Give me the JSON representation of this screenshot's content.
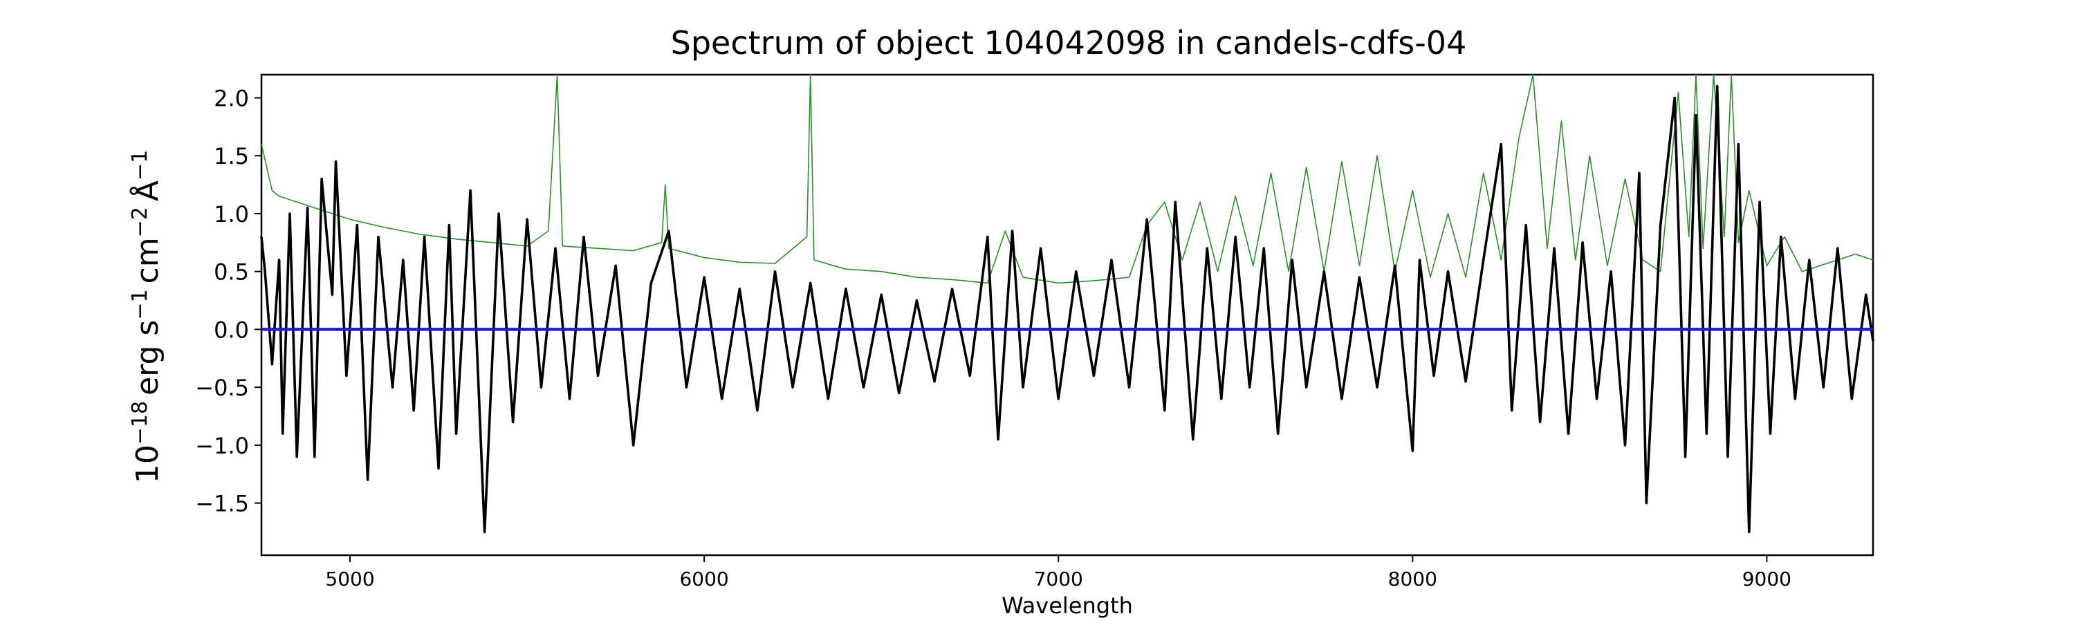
{
  "chart_data": {
    "type": "line",
    "title": "Spectrum of object 104042098 in candels-cdfs-04",
    "xlabel": "Wavelength",
    "ylabel": {
      "prefix": "10",
      "exp1": "−18",
      "unit1": "erg s",
      "exp2": "−1",
      "unit2": "cm",
      "exp3": "−2",
      "unit3": "Å",
      "exp4": "−1"
    },
    "xlim": [
      4750,
      9300
    ],
    "ylim": [
      -1.95,
      2.2
    ],
    "xticks": [
      5000,
      6000,
      7000,
      8000,
      9000
    ],
    "xtick_labels": [
      "5000",
      "6000",
      "7000",
      "8000",
      "9000"
    ],
    "yticks": [
      2.0,
      1.5,
      1.0,
      0.5,
      0.0,
      -0.5,
      -1.0,
      -1.5
    ],
    "ytick_labels": [
      "2.0",
      "1.5",
      "1.0",
      "0.5",
      "0.0",
      "−0.5",
      "−1.0",
      "−1.5"
    ],
    "grid": false,
    "series": [
      {
        "role": "noise",
        "color": "#2e8b2e",
        "x": [
          4750,
          4780,
          4800,
          4850,
          4900,
          5000,
          5100,
          5200,
          5300,
          5400,
          5500,
          5560,
          5585,
          5600,
          5700,
          5800,
          5880,
          5890,
          5900,
          6000,
          6100,
          6200,
          6290,
          6300,
          6310,
          6400,
          6500,
          6600,
          6700,
          6800,
          6850,
          6900,
          7000,
          7100,
          7200,
          7250,
          7300,
          7350,
          7400,
          7450,
          7500,
          7550,
          7600,
          7650,
          7700,
          7750,
          7800,
          7850,
          7900,
          7950,
          8000,
          8050,
          8100,
          8150,
          8200,
          8250,
          8300,
          8340,
          8380,
          8420,
          8460,
          8500,
          8550,
          8600,
          8650,
          8700,
          8750,
          8780,
          8800,
          8820,
          8850,
          8880,
          8900,
          8920,
          8950,
          9000,
          9050,
          9100,
          9150,
          9200,
          9250,
          9300
        ],
        "y": [
          1.6,
          1.2,
          1.15,
          1.1,
          1.05,
          0.95,
          0.88,
          0.82,
          0.78,
          0.75,
          0.72,
          0.85,
          2.2,
          0.72,
          0.7,
          0.68,
          0.75,
          1.25,
          0.7,
          0.62,
          0.58,
          0.57,
          0.8,
          2.2,
          0.6,
          0.52,
          0.5,
          0.45,
          0.43,
          0.4,
          0.85,
          0.45,
          0.4,
          0.42,
          0.45,
          0.9,
          1.1,
          0.6,
          1.1,
          0.5,
          1.15,
          0.55,
          1.35,
          0.5,
          1.4,
          0.5,
          1.45,
          0.55,
          1.5,
          0.5,
          1.2,
          0.45,
          1.0,
          0.45,
          1.35,
          0.6,
          1.65,
          2.2,
          0.7,
          1.8,
          0.6,
          1.5,
          0.55,
          1.3,
          0.6,
          0.5,
          2.05,
          0.8,
          2.2,
          0.7,
          2.2,
          0.8,
          2.2,
          0.75,
          1.2,
          0.55,
          0.8,
          0.5,
          0.55,
          0.6,
          0.65,
          0.6
        ]
      },
      {
        "role": "flux",
        "color": "#000000",
        "x": [
          4750,
          4760,
          4780,
          4800,
          4810,
          4830,
          4850,
          4880,
          4900,
          4920,
          4950,
          4960,
          4990,
          5020,
          5050,
          5080,
          5120,
          5150,
          5180,
          5210,
          5250,
          5280,
          5300,
          5340,
          5380,
          5420,
          5460,
          5500,
          5540,
          5580,
          5620,
          5660,
          5700,
          5750,
          5800,
          5850,
          5900,
          5950,
          6000,
          6050,
          6100,
          6150,
          6200,
          6250,
          6300,
          6350,
          6400,
          6450,
          6500,
          6550,
          6600,
          6650,
          6700,
          6750,
          6800,
          6830,
          6870,
          6900,
          6950,
          7000,
          7050,
          7100,
          7150,
          7200,
          7250,
          7300,
          7330,
          7380,
          7420,
          7460,
          7500,
          7540,
          7580,
          7620,
          7660,
          7700,
          7750,
          7800,
          7850,
          7900,
          7950,
          8000,
          8020,
          8060,
          8100,
          8150,
          8200,
          8250,
          8280,
          8320,
          8360,
          8400,
          8440,
          8480,
          8520,
          8560,
          8600,
          8640,
          8660,
          8700,
          8740,
          8770,
          8800,
          8830,
          8860,
          8890,
          8920,
          8950,
          8980,
          9010,
          9040,
          9080,
          9120,
          9160,
          9200,
          9240,
          9280,
          9300
        ],
        "y": [
          0.8,
          0.5,
          -0.3,
          0.6,
          -0.9,
          1.0,
          -1.1,
          1.05,
          -1.1,
          1.3,
          0.3,
          1.45,
          -0.4,
          0.9,
          -1.3,
          0.8,
          -0.5,
          0.6,
          -0.7,
          0.8,
          -1.2,
          0.9,
          -0.9,
          1.2,
          -1.75,
          1.0,
          -0.8,
          0.95,
          -0.5,
          0.7,
          -0.6,
          0.8,
          -0.4,
          0.55,
          -1.0,
          0.4,
          0.85,
          -0.5,
          0.45,
          -0.6,
          0.35,
          -0.7,
          0.5,
          -0.5,
          0.4,
          -0.6,
          0.35,
          -0.5,
          0.3,
          -0.55,
          0.25,
          -0.45,
          0.35,
          -0.4,
          0.8,
          -0.95,
          0.85,
          -0.5,
          0.7,
          -0.6,
          0.5,
          -0.4,
          0.6,
          -0.5,
          0.95,
          -0.7,
          1.1,
          -0.95,
          0.7,
          -0.6,
          0.8,
          -0.5,
          0.7,
          -0.9,
          0.6,
          -0.5,
          0.5,
          -0.6,
          0.45,
          -0.5,
          0.55,
          -1.05,
          0.6,
          -0.4,
          0.5,
          -0.45,
          0.6,
          1.6,
          -0.7,
          0.9,
          -0.8,
          0.7,
          -0.9,
          0.75,
          -0.6,
          0.5,
          -1.0,
          1.35,
          -1.5,
          0.9,
          2.0,
          -1.1,
          1.85,
          -0.9,
          2.1,
          -1.1,
          1.6,
          -1.75,
          1.1,
          -0.9,
          0.8,
          -0.6,
          0.6,
          -0.5,
          0.7,
          -0.6,
          0.3,
          -0.1
        ]
      },
      {
        "role": "zero",
        "color": "#1f1fbf",
        "x": [
          4750,
          9300
        ],
        "y": [
          0.0,
          0.0
        ]
      }
    ]
  }
}
